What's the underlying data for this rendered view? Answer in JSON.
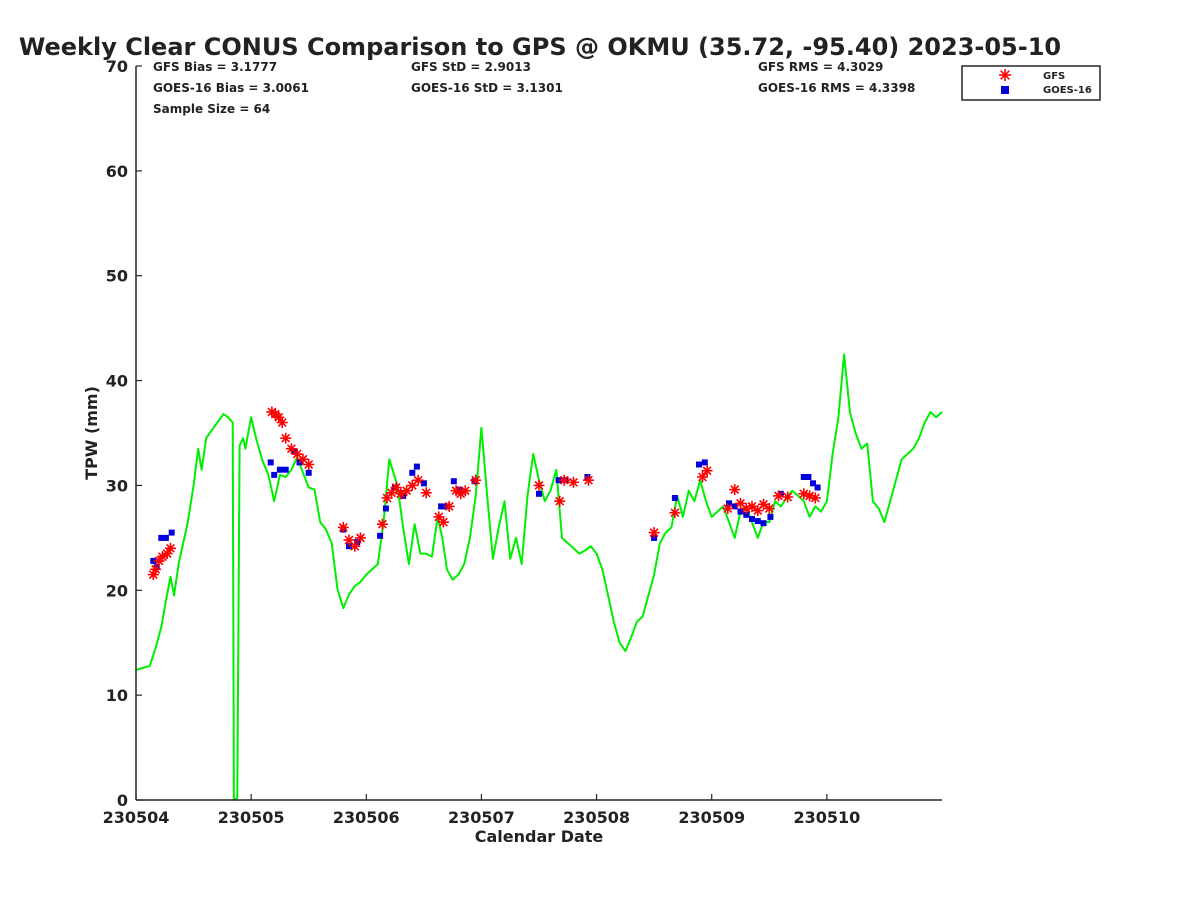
{
  "chart_data": {
    "type": "scatter",
    "title": "Weekly Clear CONUS Comparison to GPS @ OKMU (35.72, -95.40) 2023-05-10",
    "xlabel": "Calendar Date",
    "ylabel": "TPW (mm)",
    "xlim": [
      230504,
      230511
    ],
    "ylim": [
      0,
      70
    ],
    "x_ticks": [
      230504,
      230505,
      230506,
      230507,
      230508,
      230509,
      230510
    ],
    "x_tick_labels": [
      "230504",
      "230505",
      "230506",
      "230507",
      "230508",
      "230509",
      "230510"
    ],
    "y_ticks": [
      0,
      10,
      20,
      30,
      40,
      50,
      60,
      70
    ],
    "y_tick_labels": [
      "0",
      "10",
      "20",
      "30",
      "40",
      "50",
      "60",
      "70"
    ],
    "grid": false,
    "legend": {
      "placement": "top-right",
      "entries": [
        "GFS",
        "GOES-16"
      ]
    },
    "colors": {
      "gps": "#00ee00",
      "gfs": "#ff0000",
      "goes": "#0000dd"
    },
    "stats": {
      "gfs_bias": "GFS Bias = 3.1777",
      "goes_bias": "GOES-16 Bias = 3.0061",
      "sample_size": "Sample Size = 64",
      "gfs_std": "GFS StD = 2.9013",
      "goes_std": "GOES-16 StD = 3.1301",
      "gfs_rms": "GFS RMS = 4.3029",
      "goes_rms": "GOES-16 RMS = 4.3398"
    },
    "series": [
      {
        "name": "GPS",
        "type": "line",
        "x": [
          230504.0,
          230504.12,
          230504.17,
          230504.22,
          230504.26,
          230504.3,
          230504.33,
          230504.37,
          230504.41,
          230504.45,
          230504.5,
          230504.54,
          230504.57,
          230504.61,
          230504.64,
          230504.68,
          230504.72,
          230504.76,
          230504.8,
          230504.84,
          230504.85,
          230504.88,
          230504.9,
          230504.93,
          230504.95,
          230505.0,
          230505.05,
          230505.1,
          230505.15,
          230505.2,
          230505.25,
          230505.3,
          230505.35,
          230505.4,
          230505.45,
          230505.5,
          230505.55,
          230505.6,
          230505.65,
          230505.7,
          230505.75,
          230505.8,
          230505.85,
          230505.9,
          230505.95,
          230506.0,
          230506.1,
          230506.15,
          230506.2,
          230506.27,
          230506.32,
          230506.37,
          230506.42,
          230506.47,
          230506.52,
          230506.57,
          230506.62,
          230506.66,
          230506.7,
          230506.75,
          230506.8,
          230506.85,
          230506.9,
          230506.95,
          230507.0,
          230507.05,
          230507.1,
          230507.15,
          230507.2,
          230507.25,
          230507.3,
          230507.35,
          230507.4,
          230507.45,
          230507.5,
          230507.55,
          230507.6,
          230507.65,
          230507.7,
          230507.75,
          230507.8,
          230507.85,
          230507.9,
          230507.95,
          230508.0,
          230508.05,
          230508.1,
          230508.15,
          230508.2,
          230508.25,
          230508.3,
          230508.35,
          230508.4,
          230508.45,
          230508.5,
          230508.55,
          230508.6,
          230508.65,
          230508.7,
          230508.75,
          230508.8,
          230508.85,
          230508.9,
          230508.95,
          230509.0,
          230509.05,
          230509.1,
          230509.15,
          230509.2,
          230509.25,
          230509.3,
          230509.35,
          230509.4,
          230509.45,
          230509.5,
          230509.55,
          230509.6,
          230509.65,
          230509.7,
          230509.75,
          230509.8,
          230509.85,
          230509.9,
          230509.95,
          230510.0,
          230510.05,
          230510.1,
          230510.15,
          230510.2,
          230510.25,
          230510.3,
          230510.35,
          230510.4,
          230510.45,
          230510.5,
          230510.55,
          230510.6,
          230510.65,
          230510.7,
          230510.75,
          230510.8,
          230510.85,
          230510.9,
          230510.95,
          230511.0
        ],
        "y": [
          12.4,
          12.8,
          14.5,
          16.5,
          19.0,
          21.3,
          19.5,
          22.5,
          24.5,
          26.5,
          30.0,
          33.5,
          31.5,
          34.5,
          35.0,
          35.6,
          36.2,
          36.8,
          36.5,
          36.0,
          0.0,
          0.2,
          33.8,
          34.5,
          33.5,
          36.5,
          34.2,
          32.3,
          31.0,
          28.5,
          31.0,
          30.8,
          31.5,
          32.7,
          31.2,
          29.8,
          29.6,
          26.5,
          25.8,
          24.5,
          20.1,
          18.3,
          19.6,
          20.4,
          20.8,
          21.5,
          22.5,
          26.5,
          32.5,
          30.0,
          26.0,
          22.5,
          26.3,
          23.5,
          23.5,
          23.2,
          27.0,
          25.0,
          22.0,
          21.0,
          21.5,
          22.5,
          25.0,
          29.0,
          35.5,
          29.0,
          23.0,
          26.0,
          28.5,
          23.0,
          25.0,
          22.5,
          29.0,
          33.0,
          30.5,
          28.5,
          29.5,
          31.5,
          25.0,
          24.5,
          24.0,
          23.5,
          23.8,
          24.2,
          23.5,
          22.0,
          19.5,
          17.0,
          15.0,
          14.2,
          15.5,
          17.0,
          17.5,
          19.5,
          21.5,
          24.5,
          25.5,
          26.0,
          29.0,
          27.0,
          29.5,
          28.5,
          30.5,
          28.5,
          27.0,
          27.5,
          28.0,
          26.5,
          25.0,
          27.5,
          28.0,
          26.5,
          25.0,
          26.5,
          26.5,
          28.5,
          28.0,
          28.8,
          29.5,
          29.0,
          28.5,
          27.0,
          28.0,
          27.5,
          28.5,
          33.0,
          36.5,
          42.5,
          37.0,
          35.0,
          33.5,
          34.0,
          28.5,
          27.8,
          26.5,
          28.5,
          30.5,
          32.5,
          33.0,
          33.5,
          34.5,
          36.0,
          37.0,
          36.5,
          37.0
        ]
      },
      {
        "name": "GFS",
        "type": "scatter",
        "x": [
          230504.15,
          230504.17,
          230504.2,
          230504.23,
          230504.27,
          230504.3,
          230505.18,
          230505.21,
          230505.24,
          230505.27,
          230505.3,
          230505.35,
          230505.4,
          230505.45,
          230505.5,
          230505.8,
          230505.85,
          230505.9,
          230505.95,
          230506.14,
          230506.18,
          230506.22,
          230506.26,
          230506.3,
          230506.35,
          230506.4,
          230506.45,
          230506.52,
          230506.63,
          230506.67,
          230506.72,
          230506.78,
          230506.82,
          230506.86,
          230506.95,
          230507.5,
          230507.68,
          230507.72,
          230507.8,
          230507.93,
          230508.5,
          230508.68,
          230508.92,
          230508.96,
          230509.14,
          230509.2,
          230509.25,
          230509.3,
          230509.35,
          230509.4,
          230509.45,
          230509.5,
          230509.58,
          230509.66,
          230509.8,
          230509.85,
          230509.9
        ],
        "y": [
          21.5,
          22.0,
          22.8,
          23.2,
          23.5,
          24.0,
          37.0,
          36.8,
          36.5,
          36.0,
          34.5,
          33.5,
          33.0,
          32.5,
          32.0,
          26.0,
          24.8,
          24.2,
          25.0,
          26.3,
          28.8,
          29.3,
          29.8,
          29.2,
          29.5,
          30.0,
          30.5,
          29.3,
          27.0,
          26.5,
          28.0,
          29.5,
          29.2,
          29.5,
          30.5,
          30.0,
          28.5,
          30.5,
          30.3,
          30.5,
          25.5,
          27.4,
          30.8,
          31.4,
          27.8,
          29.6,
          28.3,
          27.8,
          28.0,
          27.6,
          28.2,
          27.8,
          29.0,
          28.9,
          29.2,
          29.0,
          28.8
        ]
      },
      {
        "name": "GOES-16",
        "type": "scatter",
        "x": [
          230504.15,
          230504.18,
          230504.22,
          230504.26,
          230504.31,
          230505.17,
          230505.2,
          230505.25,
          230505.3,
          230505.38,
          230505.42,
          230505.5,
          230505.8,
          230505.85,
          230505.92,
          230506.12,
          230506.17,
          230506.25,
          230506.32,
          230506.4,
          230506.44,
          230506.5,
          230506.65,
          230506.7,
          230506.76,
          230506.81,
          230506.94,
          230507.5,
          230507.67,
          230507.73,
          230507.92,
          230508.5,
          230508.68,
          230508.89,
          230508.94,
          230509.15,
          230509.2,
          230509.25,
          230509.3,
          230509.35,
          230509.4,
          230509.45,
          230509.51,
          230509.6,
          230509.8,
          230509.84,
          230509.88,
          230509.92
        ],
        "y": [
          22.8,
          22.2,
          25.0,
          25.0,
          25.5,
          32.2,
          31.0,
          31.5,
          31.5,
          33.2,
          32.2,
          31.2,
          25.8,
          24.2,
          24.6,
          25.2,
          27.8,
          29.8,
          29.0,
          31.2,
          31.8,
          30.2,
          28.0,
          28.0,
          30.4,
          29.6,
          30.4,
          29.2,
          30.5,
          30.5,
          30.8,
          25.0,
          28.8,
          32.0,
          32.2,
          28.3,
          28.0,
          27.5,
          27.2,
          26.8,
          26.6,
          26.4,
          27.0,
          29.2,
          30.8,
          30.8,
          30.2,
          29.8
        ]
      }
    ]
  }
}
